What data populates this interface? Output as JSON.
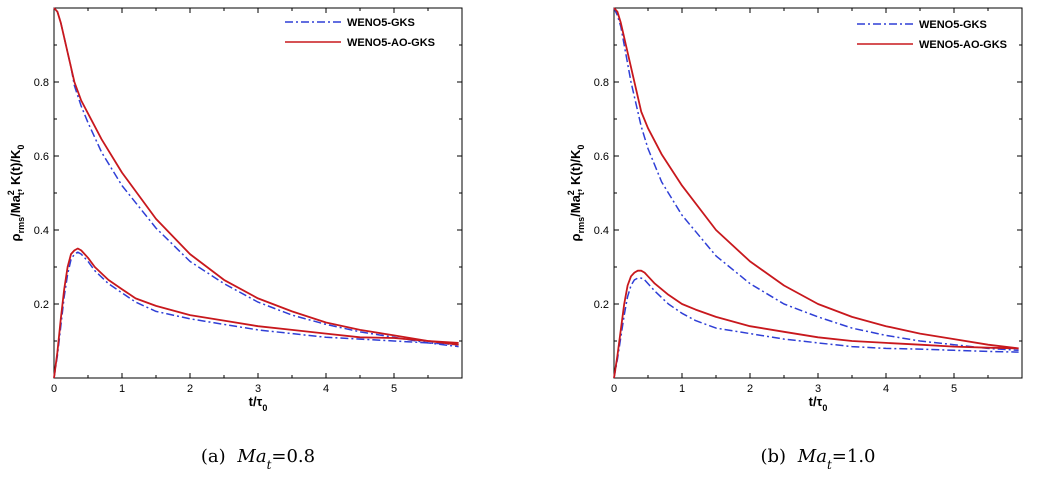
{
  "chart_data": [
    {
      "type": "line",
      "caption": {
        "label": "(a)",
        "var": "Ma",
        "sub": "t",
        "value": "=0.8"
      },
      "xlabel": {
        "main": "t/τ",
        "sub": "0"
      },
      "ylabel": {
        "p1": "ρ",
        "p1sub": "rms",
        "p2": "/Ma",
        "p2sup": "2",
        "p2sub": "t",
        "p3": ", K(t)/K",
        "p3sub": "0"
      },
      "xlim": [
        0,
        6
      ],
      "ylim": [
        0,
        1
      ],
      "xticks": [
        0,
        1,
        2,
        3,
        4,
        5
      ],
      "yticks": [
        0.2,
        0.4,
        0.6,
        0.8
      ],
      "grid": false,
      "legend": "top-right",
      "series": [
        {
          "name": "WENO5-GKS",
          "color": "#2f3fd6",
          "dash": "8,3,2,3",
          "curves": [
            {
              "x": [
                0,
                0.05,
                0.1,
                0.15,
                0.2,
                0.25,
                0.3,
                0.4,
                0.5,
                0.7,
                1.0,
                1.5,
                2.0,
                2.5,
                3.0,
                3.5,
                4.0,
                4.5,
                5.0,
                5.5,
                5.95
              ],
              "y": [
                1.0,
                0.99,
                0.96,
                0.92,
                0.88,
                0.84,
                0.79,
                0.735,
                0.69,
                0.61,
                0.52,
                0.405,
                0.315,
                0.255,
                0.205,
                0.17,
                0.145,
                0.125,
                0.11,
                0.095,
                0.085
              ]
            },
            {
              "x": [
                0,
                0.05,
                0.1,
                0.15,
                0.2,
                0.25,
                0.3,
                0.35,
                0.4,
                0.5,
                0.6,
                0.8,
                1.0,
                1.2,
                1.5,
                2.0,
                2.5,
                3.0,
                3.5,
                4.0,
                4.5,
                5.0,
                5.5,
                5.95
              ],
              "y": [
                0,
                0.06,
                0.14,
                0.22,
                0.28,
                0.32,
                0.335,
                0.34,
                0.335,
                0.315,
                0.29,
                0.255,
                0.23,
                0.205,
                0.18,
                0.16,
                0.145,
                0.13,
                0.12,
                0.11,
                0.105,
                0.1,
                0.095,
                0.09
              ]
            }
          ]
        },
        {
          "name": "WENO5-AO-GKS",
          "color": "#c8181d",
          "dash": "",
          "curves": [
            {
              "x": [
                0,
                0.05,
                0.1,
                0.15,
                0.2,
                0.25,
                0.3,
                0.4,
                0.5,
                0.7,
                1.0,
                1.5,
                2.0,
                2.5,
                3.0,
                3.5,
                4.0,
                4.5,
                5.0,
                5.5,
                5.95
              ],
              "y": [
                1.0,
                0.99,
                0.96,
                0.92,
                0.88,
                0.84,
                0.8,
                0.75,
                0.715,
                0.645,
                0.555,
                0.43,
                0.335,
                0.265,
                0.215,
                0.18,
                0.15,
                0.13,
                0.115,
                0.1,
                0.09
              ]
            },
            {
              "x": [
                0,
                0.05,
                0.1,
                0.15,
                0.2,
                0.25,
                0.3,
                0.35,
                0.4,
                0.5,
                0.6,
                0.8,
                1.0,
                1.2,
                1.5,
                2.0,
                2.5,
                3.0,
                3.5,
                4.0,
                4.5,
                5.0,
                5.5,
                5.95
              ],
              "y": [
                0,
                0.07,
                0.16,
                0.24,
                0.3,
                0.335,
                0.345,
                0.35,
                0.345,
                0.325,
                0.3,
                0.265,
                0.24,
                0.215,
                0.195,
                0.17,
                0.155,
                0.14,
                0.13,
                0.12,
                0.11,
                0.108,
                0.1,
                0.095
              ]
            }
          ]
        }
      ]
    },
    {
      "type": "line",
      "caption": {
        "label": "(b)",
        "var": "Ma",
        "sub": "t",
        "value": "=1.0"
      },
      "xlabel": {
        "main": "t/τ",
        "sub": "0"
      },
      "ylabel": {
        "p1": "ρ",
        "p1sub": "rms",
        "p2": "/Ma",
        "p2sup": "2",
        "p2sub": "t",
        "p3": ", K(t)/K",
        "p3sub": "0"
      },
      "xlim": [
        0,
        6
      ],
      "ylim": [
        0,
        1
      ],
      "xticks": [
        0,
        1,
        2,
        3,
        4,
        5
      ],
      "yticks": [
        0.2,
        0.4,
        0.6,
        0.8
      ],
      "grid": false,
      "legend": "top-right",
      "series": [
        {
          "name": "WENO5-GKS",
          "color": "#2f3fd6",
          "dash": "8,3,2,3",
          "curves": [
            {
              "x": [
                0,
                0.05,
                0.1,
                0.15,
                0.2,
                0.25,
                0.3,
                0.4,
                0.5,
                0.7,
                1.0,
                1.5,
                2.0,
                2.5,
                3.0,
                3.5,
                4.0,
                4.5,
                5.0,
                5.5,
                5.95
              ],
              "y": [
                1.0,
                0.98,
                0.95,
                0.9,
                0.85,
                0.8,
                0.76,
                0.68,
                0.62,
                0.53,
                0.44,
                0.33,
                0.255,
                0.2,
                0.165,
                0.135,
                0.115,
                0.1,
                0.09,
                0.08,
                0.075
              ]
            },
            {
              "x": [
                0,
                0.05,
                0.1,
                0.15,
                0.2,
                0.25,
                0.3,
                0.35,
                0.4,
                0.45,
                0.5,
                0.6,
                0.8,
                1.0,
                1.2,
                1.5,
                2.0,
                2.5,
                3.0,
                3.5,
                4.0,
                4.5,
                5.0,
                5.5,
                5.95
              ],
              "y": [
                0,
                0.05,
                0.11,
                0.17,
                0.22,
                0.25,
                0.265,
                0.27,
                0.27,
                0.265,
                0.255,
                0.235,
                0.2,
                0.175,
                0.155,
                0.135,
                0.12,
                0.105,
                0.095,
                0.085,
                0.08,
                0.078,
                0.075,
                0.072,
                0.07
              ]
            }
          ]
        },
        {
          "name": "WENO5-AO-GKS",
          "color": "#c8181d",
          "dash": "",
          "curves": [
            {
              "x": [
                0,
                0.05,
                0.1,
                0.15,
                0.2,
                0.25,
                0.3,
                0.4,
                0.5,
                0.7,
                1.0,
                1.5,
                2.0,
                2.5,
                3.0,
                3.5,
                4.0,
                4.5,
                5.0,
                5.5,
                5.95
              ],
              "y": [
                1.0,
                0.99,
                0.96,
                0.92,
                0.88,
                0.84,
                0.8,
                0.72,
                0.675,
                0.605,
                0.52,
                0.4,
                0.315,
                0.25,
                0.2,
                0.165,
                0.14,
                0.12,
                0.105,
                0.09,
                0.08
              ]
            },
            {
              "x": [
                0,
                0.05,
                0.1,
                0.15,
                0.2,
                0.25,
                0.3,
                0.35,
                0.4,
                0.45,
                0.5,
                0.6,
                0.8,
                1.0,
                1.2,
                1.5,
                2.0,
                2.5,
                3.0,
                3.5,
                4.0,
                4.5,
                5.0,
                5.5,
                5.95
              ],
              "y": [
                0,
                0.06,
                0.13,
                0.2,
                0.25,
                0.275,
                0.285,
                0.29,
                0.29,
                0.285,
                0.275,
                0.255,
                0.225,
                0.2,
                0.185,
                0.165,
                0.14,
                0.125,
                0.11,
                0.1,
                0.095,
                0.09,
                0.085,
                0.082,
                0.08
              ]
            }
          ]
        }
      ]
    }
  ]
}
